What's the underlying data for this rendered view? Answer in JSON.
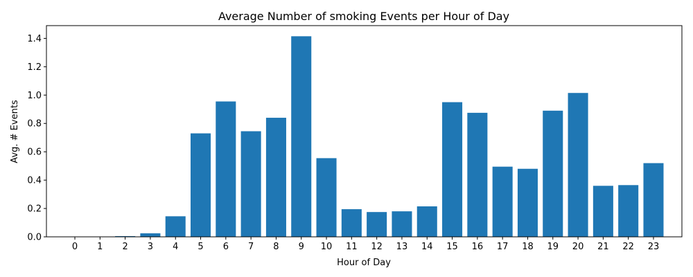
{
  "chart_data": {
    "type": "bar",
    "title": "Average Number of smoking Events per Hour of Day",
    "xlabel": "Hour of Day",
    "ylabel": "Avg. # Events",
    "categories": [
      "0",
      "1",
      "2",
      "3",
      "4",
      "5",
      "6",
      "7",
      "8",
      "9",
      "10",
      "11",
      "12",
      "13",
      "14",
      "15",
      "16",
      "17",
      "18",
      "19",
      "20",
      "21",
      "22",
      "23"
    ],
    "values": [
      0.0,
      0.0,
      0.005,
      0.025,
      0.145,
      0.73,
      0.955,
      0.745,
      0.84,
      1.415,
      0.555,
      0.195,
      0.175,
      0.18,
      0.215,
      0.95,
      0.875,
      0.495,
      0.48,
      0.89,
      1.015,
      0.36,
      0.365,
      0.52
    ],
    "ylim": [
      0,
      1.49
    ],
    "yticks": [
      0.0,
      0.2,
      0.4,
      0.6,
      0.8,
      1.0,
      1.2,
      1.4
    ],
    "ytick_labels": [
      "0.0",
      "0.2",
      "0.4",
      "0.6",
      "0.8",
      "1.0",
      "1.2",
      "1.4"
    ],
    "grid": false,
    "bar_color": "#1f77b4"
  }
}
